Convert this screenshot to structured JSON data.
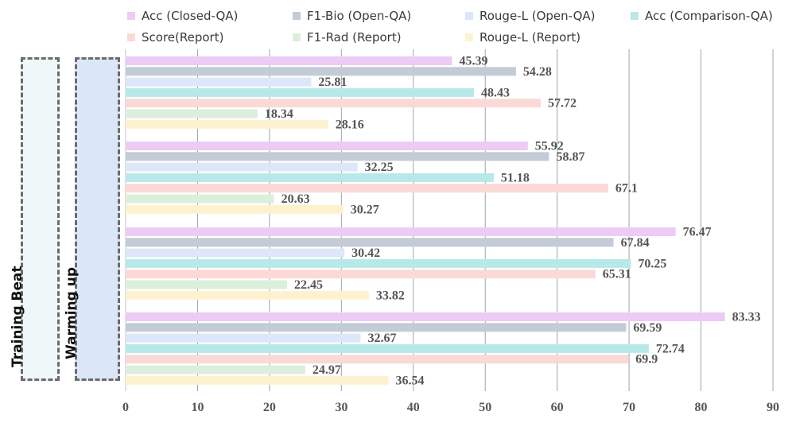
{
  "chart_data": {
    "type": "bar",
    "orientation": "horizontal",
    "xlim": [
      0,
      90
    ],
    "xticks": [
      0,
      10,
      20,
      30,
      40,
      50,
      60,
      70,
      80,
      90
    ],
    "grid": "vertical",
    "legend_position": "top",
    "series": [
      {
        "name": "Acc (Closed-QA)",
        "color": "#eccbf5",
        "values": [
          45.39,
          55.92,
          76.47,
          83.33
        ]
      },
      {
        "name": "F1-Bio (Open-QA)",
        "color": "#c3ccd6",
        "values": [
          54.28,
          58.87,
          67.84,
          69.59
        ]
      },
      {
        "name": "Rouge-L (Open-QA)",
        "color": "#dde7f9",
        "values": [
          25.81,
          32.25,
          30.42,
          32.67
        ]
      },
      {
        "name": "Acc (Comparison-QA)",
        "color": "#b7e9e8",
        "values": [
          48.43,
          51.18,
          70.25,
          72.74
        ]
      },
      {
        "name": "Score(Report)",
        "color": "#fbd9d7",
        "values": [
          57.72,
          67.1,
          65.31,
          69.9
        ]
      },
      {
        "name": "F1-Rad (Report)",
        "color": "#dcefdc",
        "values": [
          18.34,
          20.63,
          22.45,
          24.97
        ]
      },
      {
        "name": "Rouge-L (Report)",
        "color": "#fdf2cf",
        "values": [
          28.16,
          30.27,
          33.82,
          36.54
        ]
      }
    ],
    "value_labels": [
      [
        "45.39",
        "54.28",
        "25.81",
        "48.43",
        "57.72",
        "18.34",
        "28.16"
      ],
      [
        "55.92",
        "58.87",
        "32.25",
        "51.18",
        "67.1",
        "20.63",
        "30.27"
      ],
      [
        "76.47",
        "67.84",
        "30.42",
        "70.25",
        "65.31",
        "22.45",
        "33.82"
      ],
      [
        "83.33",
        "69.59",
        "32.67",
        "72.74",
        "69.9",
        "24.97",
        "36.54"
      ]
    ],
    "groups": [
      {
        "training_beat": false,
        "warming_up": false
      },
      {
        "training_beat": false,
        "warming_up": true
      },
      {
        "training_beat": true,
        "warming_up": false
      },
      {
        "training_beat": true,
        "warming_up": true
      }
    ],
    "side_panels": {
      "training_beat": {
        "label": "Training Beat",
        "color": "#eef8f8"
      },
      "warming_up": {
        "label": "Warming up",
        "color": "#dbe7f8"
      }
    },
    "icons": {
      "yes": "check-circle-icon",
      "no": "cross-circle-icon",
      "yes_color": "#f7ee16",
      "no_color": "#f07d7d"
    }
  }
}
